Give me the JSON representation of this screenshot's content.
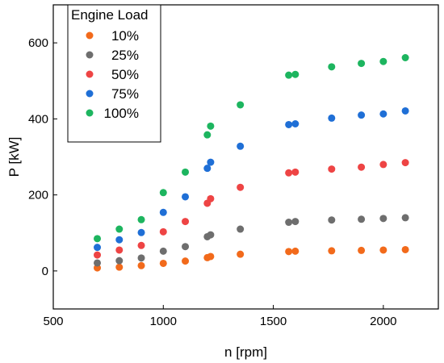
{
  "chart_data": {
    "type": "scatter",
    "title": "",
    "xlabel": "n [rpm]",
    "ylabel": "P [kW]",
    "xlim": [
      500,
      2250
    ],
    "ylim": [
      -100,
      700
    ],
    "xticks": [
      500,
      1000,
      1500,
      2000
    ],
    "yticks": [
      0,
      200,
      400,
      600
    ],
    "grid": false,
    "legend": {
      "title": "Engine Load",
      "placement": "top-left"
    },
    "series": [
      {
        "name": "10%",
        "color": "#f26a1b",
        "points": [
          [
            700,
            8
          ],
          [
            800,
            10
          ],
          [
            900,
            14
          ],
          [
            1000,
            20
          ],
          [
            1100,
            26
          ],
          [
            1200,
            35
          ],
          [
            1215,
            38
          ],
          [
            1350,
            44
          ],
          [
            1570,
            51
          ],
          [
            1600,
            52
          ],
          [
            1765,
            53
          ],
          [
            1900,
            54
          ],
          [
            2000,
            55
          ],
          [
            2100,
            56
          ]
        ]
      },
      {
        "name": "25%",
        "color": "#6e6e6e",
        "points": [
          [
            700,
            21
          ],
          [
            800,
            27
          ],
          [
            900,
            34
          ],
          [
            1000,
            52
          ],
          [
            1100,
            64
          ],
          [
            1200,
            90
          ],
          [
            1215,
            95
          ],
          [
            1350,
            110
          ],
          [
            1570,
            128
          ],
          [
            1600,
            130
          ],
          [
            1765,
            134
          ],
          [
            1900,
            136
          ],
          [
            2000,
            138
          ],
          [
            2100,
            140
          ]
        ]
      },
      {
        "name": "50%",
        "color": "#ee4444",
        "points": [
          [
            700,
            42
          ],
          [
            800,
            55
          ],
          [
            900,
            67
          ],
          [
            1000,
            103
          ],
          [
            1100,
            130
          ],
          [
            1200,
            178
          ],
          [
            1215,
            190
          ],
          [
            1350,
            220
          ],
          [
            1570,
            258
          ],
          [
            1600,
            260
          ],
          [
            1765,
            268
          ],
          [
            1900,
            273
          ],
          [
            2000,
            280
          ],
          [
            2100,
            285
          ]
        ]
      },
      {
        "name": "75%",
        "color": "#1f6fd6",
        "points": [
          [
            700,
            62
          ],
          [
            800,
            82
          ],
          [
            900,
            101
          ],
          [
            1000,
            154
          ],
          [
            1100,
            195
          ],
          [
            1200,
            270
          ],
          [
            1215,
            286
          ],
          [
            1350,
            328
          ],
          [
            1570,
            385
          ],
          [
            1600,
            387
          ],
          [
            1765,
            402
          ],
          [
            1900,
            410
          ],
          [
            2000,
            413
          ],
          [
            2100,
            421
          ]
        ]
      },
      {
        "name": "100%",
        "color": "#1db55f",
        "points": [
          [
            700,
            85
          ],
          [
            800,
            110
          ],
          [
            900,
            135
          ],
          [
            1000,
            206
          ],
          [
            1100,
            260
          ],
          [
            1200,
            358
          ],
          [
            1215,
            381
          ],
          [
            1350,
            437
          ],
          [
            1570,
            515
          ],
          [
            1600,
            517
          ],
          [
            1765,
            537
          ],
          [
            1900,
            546
          ],
          [
            2000,
            551
          ],
          [
            2100,
            561
          ]
        ]
      }
    ]
  }
}
